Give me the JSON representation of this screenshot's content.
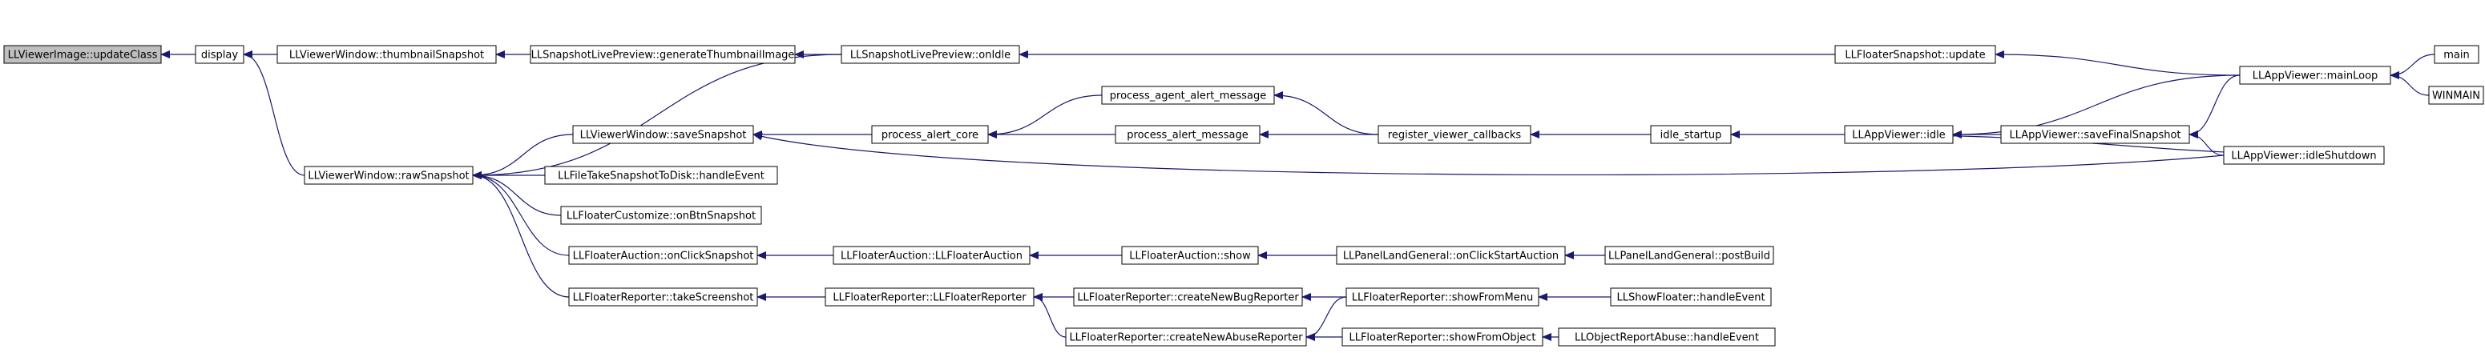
{
  "nodes": [
    {
      "label": "LLViewerImage::updateClass"
    },
    {
      "label": "display"
    },
    {
      "label": "LLViewerWindow::thumbnailSnapshot"
    },
    {
      "label": "LLSnapshotLivePreview::generateThumbnailImage"
    },
    {
      "label": "LLSnapshotLivePreview::onIdle"
    },
    {
      "label": "LLFloaterSnapshot::update"
    },
    {
      "label": "LLAppViewer::mainLoop"
    },
    {
      "label": "main"
    },
    {
      "label": "WINMAIN"
    },
    {
      "label": "LLViewerWindow::rawSnapshot"
    },
    {
      "label": "LLViewerWindow::saveSnapshot"
    },
    {
      "label": "process_alert_core"
    },
    {
      "label": "process_agent_alert_message"
    },
    {
      "label": "process_alert_message"
    },
    {
      "label": "register_viewer_callbacks"
    },
    {
      "label": "idle_startup"
    },
    {
      "label": "LLAppViewer::idle"
    },
    {
      "label": "LLAppViewer::saveFinalSnapshot"
    },
    {
      "label": "LLAppViewer::idleShutdown"
    },
    {
      "label": "LLFileTakeSnapshotToDisk::handleEvent"
    },
    {
      "label": "LLFloaterCustomize::onBtnSnapshot"
    },
    {
      "label": "LLFloaterAuction::onClickSnapshot"
    },
    {
      "label": "LLFloaterAuction::LLFloaterAuction"
    },
    {
      "label": "LLFloaterAuction::show"
    },
    {
      "label": "LLPanelLandGeneral::onClickStartAuction"
    },
    {
      "label": "LLPanelLandGeneral::postBuild"
    },
    {
      "label": "LLFloaterReporter::takeScreenshot"
    },
    {
      "label": "LLFloaterReporter::LLFloaterReporter"
    },
    {
      "label": "LLFloaterReporter::createNewBugReporter"
    },
    {
      "label": "LLFloaterReporter::showFromMenu"
    },
    {
      "label": "LLShowFloater::handleEvent"
    },
    {
      "label": "LLFloaterReporter::createNewAbuseReporter"
    },
    {
      "label": "LLFloaterReporter::showFromObject"
    },
    {
      "label": "LLObjectReportAbuse::handleEvent"
    }
  ]
}
